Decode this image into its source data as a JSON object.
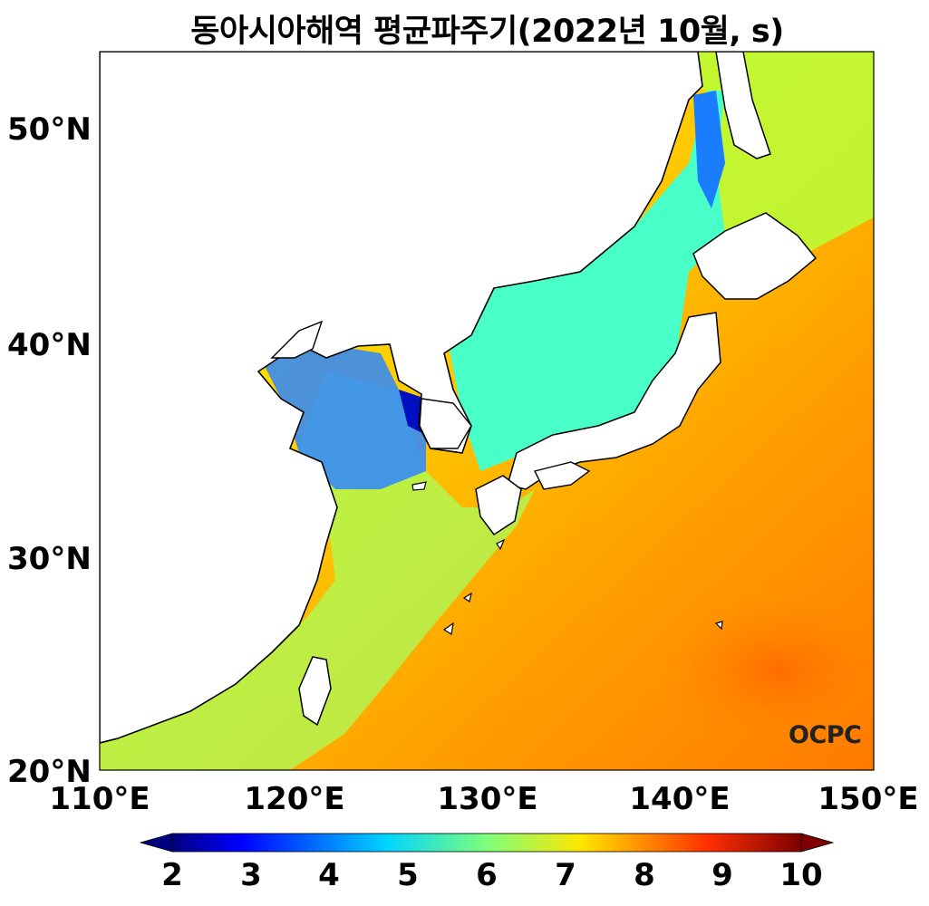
{
  "title": "동아시아해역 평균파주기(2022년 10월, s)",
  "map": {
    "lon_range": [
      110,
      150
    ],
    "lat_range": [
      20,
      53.5
    ],
    "x_ticks": [
      "110°E",
      "120°E",
      "130°E",
      "140°E",
      "150°E"
    ],
    "y_ticks": [
      "20°N",
      "30°N",
      "40°N",
      "50°N"
    ],
    "variable": "mean wave period",
    "unit": "s",
    "colormap": "jet",
    "land_color": "#ffffff",
    "coastline_color": "#000000"
  },
  "colorbar": {
    "min": 2,
    "max": 10,
    "ticks": [
      "2",
      "3",
      "4",
      "5",
      "6",
      "7",
      "8",
      "9",
      "10"
    ],
    "extend": "both"
  },
  "logo": "OCPC"
}
